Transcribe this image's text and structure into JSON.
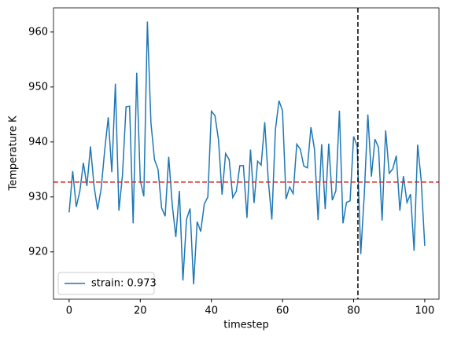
{
  "chart_data": {
    "type": "line",
    "xlabel": "timestep",
    "ylabel": "Temperature K",
    "x": [
      0,
      1,
      2,
      3,
      4,
      5,
      6,
      7,
      8,
      9,
      10,
      11,
      12,
      13,
      14,
      15,
      16,
      17,
      18,
      19,
      20,
      21,
      22,
      23,
      24,
      25,
      26,
      27,
      28,
      29,
      30,
      31,
      32,
      33,
      34,
      35,
      36,
      37,
      38,
      39,
      40,
      41,
      42,
      43,
      44,
      45,
      46,
      47,
      48,
      49,
      50,
      51,
      52,
      53,
      54,
      55,
      56,
      57,
      58,
      59,
      60,
      61,
      62,
      63,
      64,
      65,
      66,
      67,
      68,
      69,
      70,
      71,
      72,
      73,
      74,
      75,
      76,
      77,
      78,
      79,
      80,
      81,
      82,
      83,
      84,
      85,
      86,
      87,
      88,
      89,
      90,
      91,
      92,
      93,
      94,
      95,
      96,
      97,
      98,
      99,
      100
    ],
    "series": [
      {
        "name": "strain: 0.973",
        "color": "#1f77b4",
        "values": [
          927.2,
          934.7,
          928.2,
          931,
          936.2,
          932,
          939.2,
          932,
          927.7,
          931.5,
          938.5,
          944.5,
          934.5,
          950.6,
          927.5,
          934,
          946.4,
          946.5,
          925.2,
          952.6,
          933,
          930.1,
          961.9,
          943.5,
          936.8,
          935,
          928,
          926.5,
          937.3,
          928.5,
          922.7,
          931.1,
          914.8,
          925.9,
          927.9,
          914.1,
          925.5,
          923.7,
          928.7,
          930,
          945.6,
          944.8,
          940.4,
          930.4,
          937.9,
          936.8,
          929.9,
          931,
          935.7,
          935.7,
          926.2,
          938.6,
          928.9,
          936.5,
          935.8,
          943.6,
          933,
          925.9,
          942.2,
          947.5,
          945.7,
          929.6,
          931.8,
          930.6,
          939.6,
          938.7,
          935.6,
          935.3,
          942.7,
          938.6,
          925.8,
          939.6,
          927.8,
          939.7,
          929.4,
          931.1,
          945.7,
          925.2,
          929,
          929.3,
          941,
          939.2,
          919.6,
          930.5,
          945,
          933.7,
          940.5,
          939,
          925.7,
          942.1,
          934.3,
          935.1,
          937.5,
          927.5,
          933.8,
          929,
          930.5,
          920.2,
          939.5,
          933,
          921.1
        ]
      }
    ],
    "hline": {
      "value": 932.7,
      "color": "#d62728"
    },
    "vline": {
      "value": 81.2,
      "color": "#000000"
    },
    "xlim": [
      -4.4,
      104
    ],
    "xticks": [
      0,
      20,
      40,
      60,
      80,
      100
    ],
    "ylim": [
      911.4,
      964.4
    ],
    "yticks": [
      920,
      930,
      940,
      950,
      960
    ],
    "legend": "lower left"
  }
}
